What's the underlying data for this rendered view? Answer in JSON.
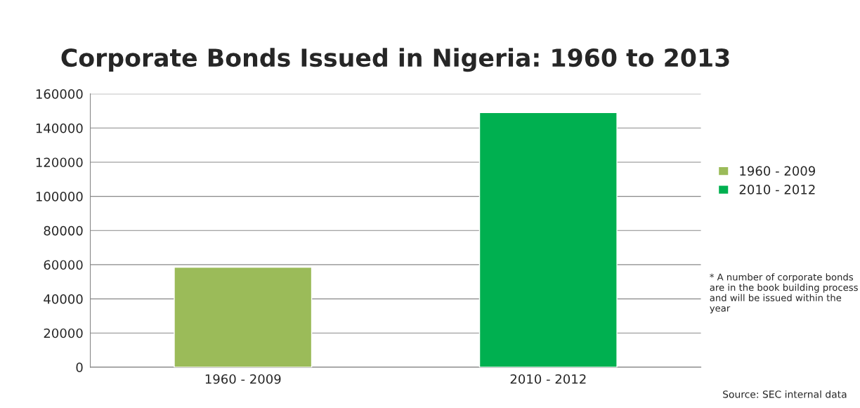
{
  "chart_data": {
    "type": "bar",
    "title": "Corporate Bonds Issued in Nigeria: 1960 to 2013",
    "categories": [
      "1960 - 2009",
      "2010 - 2012"
    ],
    "series": [
      {
        "name": "1960 - 2009",
        "color": "#9bbb59",
        "values": [
          58500,
          null
        ]
      },
      {
        "name": "2010 - 2012",
        "color": "#00b050",
        "values": [
          null,
          149000
        ]
      }
    ],
    "ylim": [
      0,
      160000
    ],
    "yticks": [
      0,
      20000,
      40000,
      60000,
      80000,
      100000,
      120000,
      140000,
      160000
    ],
    "grid": "y",
    "legend": "right",
    "annotations": [
      "* A number of corporate bonds are in the book building process and will be issued within the year",
      "Source: SEC internal data"
    ]
  }
}
